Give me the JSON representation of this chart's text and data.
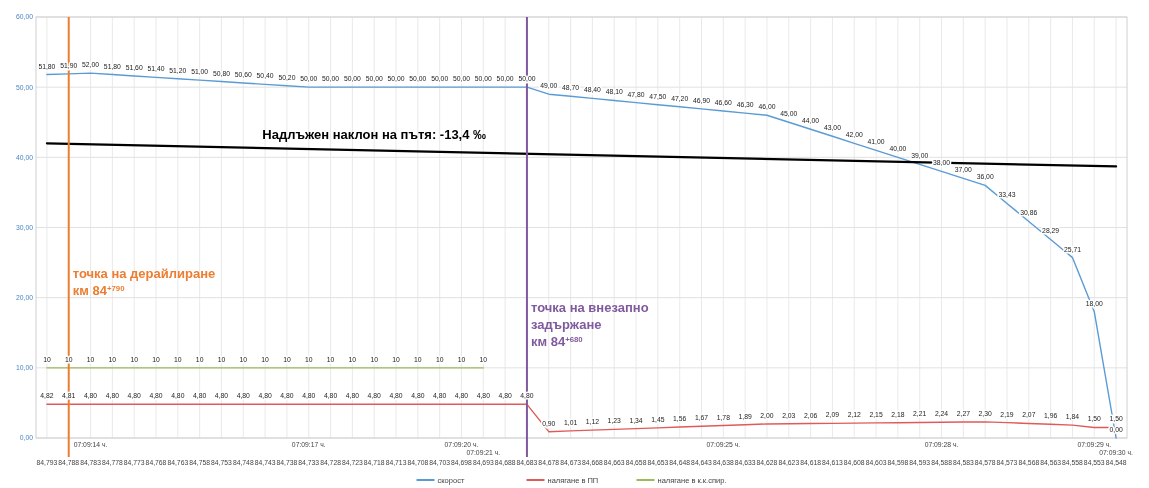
{
  "chart_data": {
    "type": "line",
    "categories": [
      "84,793",
      "84,788",
      "07:09:14 ч.\n84,783",
      "84,778",
      "84,773",
      "84,768",
      "84,763",
      "84,758",
      "84,753",
      "84,748",
      "84,743",
      "84,738",
      "07:09:17 ч.\n84,733",
      "84,728",
      "84,723",
      "84,718",
      "84,713",
      "84,708",
      "84,703",
      "07:09:20 ч.\n84,698",
      "07:09:21 ч.\n84,693",
      "84,688",
      "84,683",
      "84,678",
      "84,673",
      "84,668",
      "84,663",
      "84,658",
      "84,653",
      "84,648",
      "84,643",
      "07:09:25 ч.\n84,638",
      "84,633",
      "84,628",
      "84,623",
      "84,618",
      "84,613",
      "84,608",
      "84,603",
      "84,598",
      "84,593",
      "07:09:28 ч.\n84,588",
      "84,583",
      "84,578",
      "84,573",
      "84,568",
      "84,563",
      "84,558",
      "07:09:29 ч.\n84,553",
      "07:09:30 ч.\n84,548"
    ],
    "ylim": [
      0,
      60
    ],
    "yticks": [
      {
        "value": 0,
        "label": "0,00"
      },
      {
        "value": 10,
        "label": "10,00"
      },
      {
        "value": 20,
        "label": "20,00"
      },
      {
        "value": 30,
        "label": "30,00"
      },
      {
        "value": 40,
        "label": "40,00"
      },
      {
        "value": 50,
        "label": "50,00"
      },
      {
        "value": 60,
        "label": "60,00"
      }
    ],
    "grid": true,
    "legend": "bottom",
    "marker": "none",
    "line_style": "solid",
    "series": [
      {
        "name": "скорост",
        "color": "#5b9bd5",
        "values": [
          51.8,
          51.9,
          52,
          51.8,
          51.6,
          51.4,
          51.2,
          51,
          50.8,
          50.6,
          50.4,
          50.2,
          50,
          50,
          50,
          50,
          50,
          50,
          50,
          50,
          50,
          50,
          50,
          49,
          48.7,
          48.4,
          48.1,
          47.8,
          47.5,
          47.2,
          46.9,
          46.6,
          46.3,
          46,
          45,
          44,
          43,
          42,
          41,
          40,
          39,
          38,
          37,
          36,
          33.43,
          30.86,
          28.29,
          25.71,
          18,
          0
        ],
        "value_labels": [
          "51,80",
          "51,90",
          "52,00",
          "51,80",
          "51,60",
          "51,40",
          "51,20",
          "51,00",
          "50,80",
          "50,60",
          "50,40",
          "50,20",
          "50,00",
          "50,00",
          "50,00",
          "50,00",
          "50,00",
          "50,00",
          "50,00",
          "50,00",
          "50,00",
          "50,00",
          "50,00",
          "49,00",
          "48,70",
          "48,40",
          "48,10",
          "47,80",
          "47,50",
          "47,20",
          "46,90",
          "46,60",
          "46,30",
          "46,00",
          "45,00",
          "44,00",
          "43,00",
          "42,00",
          "41,00",
          "40,00",
          "39,00",
          "38,00",
          "37,00",
          "36,00",
          "33,43",
          "30,86",
          "28,29",
          "25,71",
          "18,00",
          "0,00"
        ]
      },
      {
        "name": "налягане в ПП",
        "color": "#e05a5a",
        "values": [
          4.82,
          4.81,
          4.8,
          4.8,
          4.8,
          4.8,
          4.8,
          4.8,
          4.8,
          4.8,
          4.8,
          4.8,
          4.8,
          4.8,
          4.8,
          4.8,
          4.8,
          4.8,
          4.8,
          4.8,
          4.8,
          4.8,
          4.8,
          0.9,
          1.01,
          1.12,
          1.23,
          1.34,
          1.45,
          1.56,
          1.67,
          1.78,
          1.89,
          2,
          2.03,
          2.06,
          2.09,
          2.12,
          2.15,
          2.18,
          2.21,
          2.24,
          2.27,
          2.3,
          2.19,
          2.07,
          1.96,
          1.84,
          1.5,
          1.5
        ],
        "value_labels": [
          "4,82",
          "4,81",
          "4,80",
          "4,80",
          "4,80",
          "4,80",
          "4,80",
          "4,80",
          "4,80",
          "4,80",
          "4,80",
          "4,80",
          "4,80",
          "4,80",
          "4,80",
          "4,80",
          "4,80",
          "4,80",
          "4,80",
          "4,80",
          "4,80",
          "4,80",
          "4,80",
          "0,90",
          "1,01",
          "1,12",
          "1,23",
          "1,34",
          "1,45",
          "1,56",
          "1,67",
          "1,78",
          "1,89",
          "2,00",
          "2,03",
          "2,06",
          "2,09",
          "2,12",
          "2,15",
          "2,18",
          "2,21",
          "2,24",
          "2,27",
          "2,30",
          "2,19",
          "2,07",
          "1,96",
          "1,84",
          "1,50",
          "1,50"
        ]
      },
      {
        "name": "налягане в к.к.спир.",
        "color": "#9bbb59",
        "values": [
          10,
          10,
          10,
          10,
          10,
          10,
          10,
          10,
          10,
          10,
          10,
          10,
          10,
          10,
          10,
          10,
          10,
          10,
          10,
          10,
          10,
          null,
          null,
          null,
          null,
          null,
          null,
          null,
          null,
          null,
          null,
          null,
          null,
          null,
          null,
          null,
          null,
          null,
          null,
          null,
          null,
          null,
          null,
          null,
          null,
          null,
          null,
          null,
          null,
          null
        ],
        "value_labels": [
          "10",
          "10",
          "10",
          "10",
          "10",
          "10",
          "10",
          "10",
          "10",
          "10",
          "10",
          "10",
          "10",
          "10",
          "10",
          "10",
          "10",
          "10",
          "10",
          "10",
          "10",
          null,
          null,
          null,
          null,
          null,
          null,
          null,
          null,
          null,
          null,
          null,
          null,
          null,
          null,
          null,
          null,
          null,
          null,
          null,
          null,
          null,
          null,
          null,
          null,
          null,
          null,
          null,
          null,
          null
        ]
      },
      {
        "color": "#000000",
        "x": [
          "84,793",
          "07:09:30 ч.\n84,548"
        ],
        "values": [
          42,
          38.7
        ]
      }
    ],
    "ref_lines": [
      {
        "axis": "x",
        "value": "84,788",
        "label": "точка на дерайлиране\nкм 84$^{+790}$",
        "color": "#ed7d31"
      },
      {
        "axis": "x",
        "value": "84,683",
        "label": "точка на внезапно\nзадържане\nкм 84$^{+680}$",
        "color": "#7f5a9e"
      }
    ],
    "annotations": [
      "Надлъжен наклон на пътя: -13,4 ‰"
    ]
  }
}
